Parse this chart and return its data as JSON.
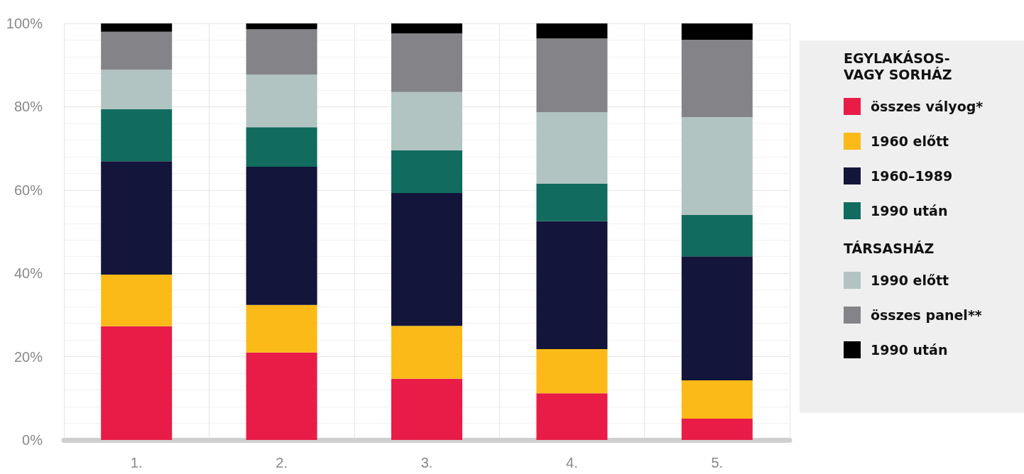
{
  "chart_data": {
    "type": "bar",
    "stacked": true,
    "categories": [
      "1.",
      "2.",
      "3.",
      "4.",
      "5."
    ],
    "series": [
      {
        "name": "összes vályog*",
        "color": "#e91b47",
        "values": [
          27.3,
          21.0,
          14.7,
          11.2,
          5.1
        ]
      },
      {
        "name": "1960 előtt",
        "color": "#fbba17",
        "values": [
          12.4,
          11.4,
          12.7,
          10.6,
          9.2
        ]
      },
      {
        "name": "1960–1989",
        "color": "#13153b",
        "values": [
          27.2,
          33.2,
          31.9,
          30.7,
          29.8
        ]
      },
      {
        "name": "1990 után",
        "color": "#116b5e",
        "values": [
          12.5,
          9.5,
          10.2,
          9.0,
          9.9
        ]
      },
      {
        "name": "1990 előtt",
        "color": "#b1c4c2",
        "values": [
          9.5,
          12.6,
          14.0,
          17.2,
          23.5
        ]
      },
      {
        "name": "összes panel**",
        "color": "#848488",
        "values": [
          9.1,
          10.9,
          14.1,
          17.7,
          18.6
        ]
      },
      {
        "name": "1990 után",
        "color": "#000000",
        "values": [
          2.0,
          1.4,
          2.4,
          3.6,
          3.9
        ]
      }
    ],
    "ylim": [
      0,
      100
    ],
    "yticks": [
      {
        "value": 0,
        "label": "0%"
      },
      {
        "value": 20,
        "label": "20%"
      },
      {
        "value": 40,
        "label": "40%"
      },
      {
        "value": 60,
        "label": "60%"
      },
      {
        "value": 80,
        "label": "80%"
      },
      {
        "value": 100,
        "label": "100%"
      }
    ],
    "grid": true,
    "legend": "right",
    "legend_title": "EGYLAKÁSOS-\nVAGY SORHÁZ",
    "annotations": [
      "TÁRSASHÁZ"
    ]
  }
}
